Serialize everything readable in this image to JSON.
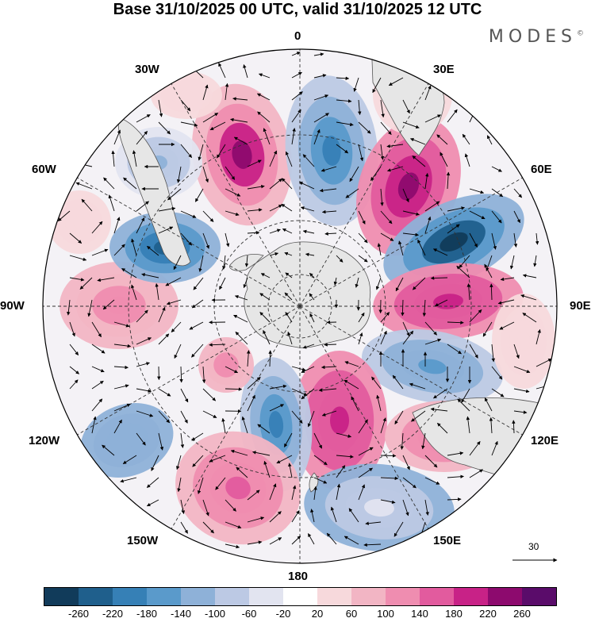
{
  "header": {
    "title": "Base 31/10/2025 00 UTC, valid 31/10/2025 12 UTC",
    "brand": "MODES",
    "brand_mark": "©"
  },
  "map": {
    "projection": "south polar stereographic",
    "longitude_labels": [
      "0",
      "30E",
      "60E",
      "90E",
      "120E",
      "150E",
      "180",
      "150W",
      "120W",
      "90W",
      "60W",
      "30W"
    ],
    "reference_vector_value": "30"
  },
  "legend": {
    "colors": [
      "#113b5a",
      "#1f5f8c",
      "#3680b6",
      "#5a9acb",
      "#8eb1d8",
      "#bcc9e4",
      "#e2e4f0",
      "#ffffff",
      "#f7d9dc",
      "#f2b5c4",
      "#ef8db0",
      "#e25b9e",
      "#c82287",
      "#8d0a6e",
      "#5a0c6a"
    ],
    "tick_labels": [
      "-260",
      "-220",
      "-180",
      "-140",
      "-100",
      "-60",
      "-20",
      "20",
      "60",
      "100",
      "140",
      "180",
      "220",
      "260"
    ]
  },
  "colors": {
    "land": "#e6e6e6",
    "coast": "#555555",
    "grid": "#333333"
  }
}
